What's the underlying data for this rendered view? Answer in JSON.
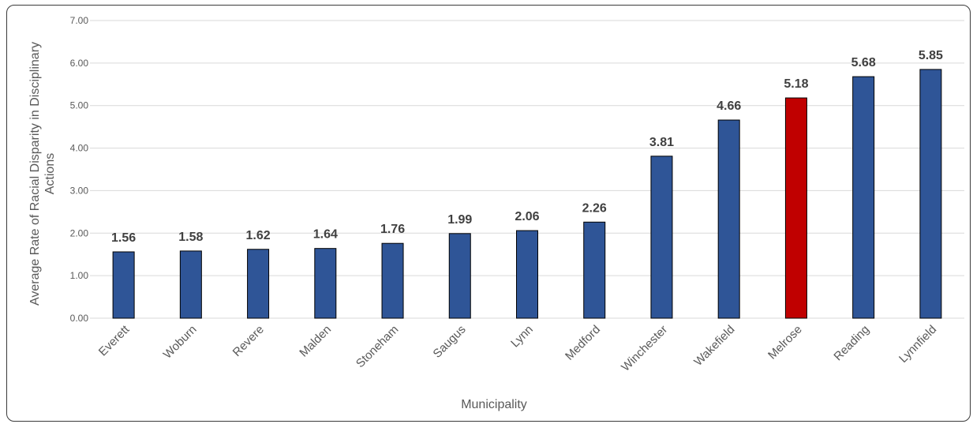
{
  "chart_data": {
    "type": "bar",
    "categories": [
      "Everett",
      "Woburn",
      "Revere",
      "Malden",
      "Stoneham",
      "Saugus",
      "Lynn",
      "Medford",
      "Winchester",
      "Wakefield",
      "Melrose",
      "Reading",
      "Lynnfield"
    ],
    "values": [
      1.56,
      1.58,
      1.62,
      1.64,
      1.76,
      1.99,
      2.06,
      2.26,
      3.81,
      4.66,
      5.18,
      5.68,
      5.85
    ],
    "value_labels": [
      "1.56",
      "1.58",
      "1.62",
      "1.64",
      "1.76",
      "1.99",
      "2.06",
      "2.26",
      "3.81",
      "4.66",
      "5.18",
      "5.68",
      "5.85"
    ],
    "highlight_category": "Melrose",
    "xlabel": "Municipality",
    "ylabel_lines": [
      "Average Rate of Racial Disparity in Disciplinary",
      "Actions"
    ],
    "ylim": [
      0,
      7
    ],
    "yticks": [
      "0.00",
      "1.00",
      "2.00",
      "3.00",
      "4.00",
      "5.00",
      "6.00",
      "7.00"
    ],
    "grid": true,
    "legend": "none",
    "colors": {
      "bar": "#2F5597",
      "highlight": "#C00000",
      "bar_outline": "#000000",
      "grid": "#D9D9D9"
    }
  }
}
